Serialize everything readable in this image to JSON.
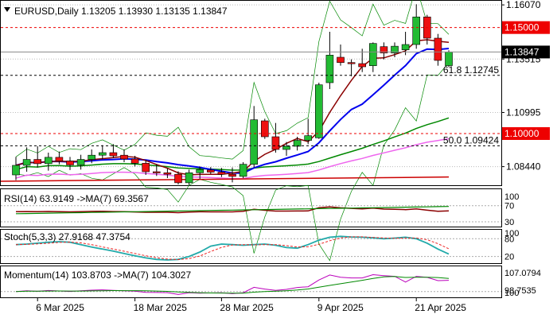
{
  "header": {
    "title": "EURUSD,Daily  1.13205 1.13930 1.13135 1.13847"
  },
  "colors": {
    "bull": "#22bb33",
    "bear": "#ee1111",
    "ma_fast": "#8b0000",
    "ma_mid": "#0000ee",
    "ma_slow": "#008800",
    "ma_pink": "#ee66ee",
    "ma_red": "#cc0000",
    "level_red": "#ee0000",
    "rsi": "#8b0000",
    "rsi_ma": "#008800",
    "stoch_main": "#22aaaa",
    "stoch_signal": "#ee2222",
    "mom": "#bb00bb",
    "mom_ma": "#008800"
  },
  "chart_data": {
    "type": "candlestick",
    "symbol": "EURUSD",
    "timeframe": "Daily",
    "ohlc_current": {
      "open": 1.13205,
      "high": 1.1393,
      "low": 1.13135,
      "close": 1.13847
    },
    "ylim": [
      1.076,
      1.1615
    ],
    "y_ticks": [
      "1.16070",
      "1.13515",
      "1.10995",
      "1.08440"
    ],
    "x_ticks": [
      "6 Mar 2025",
      "18 Mar 2025",
      "28 Mar 2025",
      "9 Apr 2025",
      "21 Apr 2025"
    ],
    "x_tick_bar_index": [
      2,
      11,
      19,
      28,
      37
    ],
    "candles": [
      {
        "o": 1.0805,
        "h": 1.089,
        "l": 1.078,
        "c": 1.085
      },
      {
        "o": 1.085,
        "h": 1.0935,
        "l": 1.082,
        "c": 1.0878
      },
      {
        "o": 1.0878,
        "h": 1.094,
        "l": 1.084,
        "c": 1.0858
      },
      {
        "o": 1.0858,
        "h": 1.091,
        "l": 1.0825,
        "c": 1.0888
      },
      {
        "o": 1.0888,
        "h": 1.0915,
        "l": 1.0855,
        "c": 1.087
      },
      {
        "o": 1.087,
        "h": 1.089,
        "l": 1.0828,
        "c": 1.0852
      },
      {
        "o": 1.0852,
        "h": 1.09,
        "l": 1.083,
        "c": 1.0878
      },
      {
        "o": 1.0878,
        "h": 1.0925,
        "l": 1.086,
        "c": 1.0898
      },
      {
        "o": 1.0898,
        "h": 1.0945,
        "l": 1.088,
        "c": 1.091
      },
      {
        "o": 1.091,
        "h": 1.095,
        "l": 1.0885,
        "c": 1.0895
      },
      {
        "o": 1.0898,
        "h": 1.0925,
        "l": 1.0865,
        "c": 1.088
      },
      {
        "o": 1.088,
        "h": 1.0895,
        "l": 1.0845,
        "c": 1.086
      },
      {
        "o": 1.086,
        "h": 1.0875,
        "l": 1.0805,
        "c": 1.082
      },
      {
        "o": 1.082,
        "h": 1.0855,
        "l": 1.08,
        "c": 1.0815
      },
      {
        "o": 1.0815,
        "h": 1.0835,
        "l": 1.079,
        "c": 1.0808
      },
      {
        "o": 1.0808,
        "h": 1.0822,
        "l": 1.076,
        "c": 1.0768
      },
      {
        "o": 1.0768,
        "h": 1.083,
        "l": 1.0758,
        "c": 1.0815
      },
      {
        "o": 1.0815,
        "h": 1.0845,
        "l": 1.0785,
        "c": 1.083
      },
      {
        "o": 1.0828,
        "h": 1.0842,
        "l": 1.081,
        "c": 1.0818
      },
      {
        "o": 1.0818,
        "h": 1.0838,
        "l": 1.0795,
        "c": 1.0808
      },
      {
        "o": 1.0808,
        "h": 1.084,
        "l": 1.077,
        "c": 1.0798
      },
      {
        "o": 1.0798,
        "h": 1.0865,
        "l": 1.079,
        "c": 1.0855
      },
      {
        "o": 1.0855,
        "h": 1.113,
        "l": 1.084,
        "c": 1.1065
      },
      {
        "o": 1.106,
        "h": 1.107,
        "l": 1.0975,
        "c": 1.0985
      },
      {
        "o": 1.0985,
        "h": 1.105,
        "l": 1.091,
        "c": 1.0925
      },
      {
        "o": 1.0925,
        "h": 1.096,
        "l": 1.0895,
        "c": 1.094
      },
      {
        "o": 1.094,
        "h": 1.0985,
        "l": 1.092,
        "c": 1.0968
      },
      {
        "o": 1.0968,
        "h": 1.107,
        "l": 1.095,
        "c": 1.099
      },
      {
        "o": 1.098,
        "h": 1.124,
        "l": 1.0975,
        "c": 1.123
      },
      {
        "o": 1.124,
        "h": 1.148,
        "l": 1.121,
        "c": 1.137
      },
      {
        "o": 1.136,
        "h": 1.142,
        "l": 1.132,
        "c": 1.1335
      },
      {
        "o": 1.1335,
        "h": 1.135,
        "l": 1.127,
        "c": 1.133
      },
      {
        "o": 1.133,
        "h": 1.14,
        "l": 1.129,
        "c": 1.1315
      },
      {
        "o": 1.132,
        "h": 1.143,
        "l": 1.129,
        "c": 1.1425
      },
      {
        "o": 1.141,
        "h": 1.143,
        "l": 1.135,
        "c": 1.138
      },
      {
        "o": 1.138,
        "h": 1.143,
        "l": 1.136,
        "c": 1.1412
      },
      {
        "o": 1.1395,
        "h": 1.148,
        "l": 1.137,
        "c": 1.142
      },
      {
        "o": 1.142,
        "h": 1.161,
        "l": 1.14,
        "c": 1.155
      },
      {
        "o": 1.155,
        "h": 1.156,
        "l": 1.142,
        "c": 1.145
      },
      {
        "o": 1.145,
        "h": 1.147,
        "l": 1.132,
        "c": 1.1345
      },
      {
        "o": 1.13205,
        "h": 1.1393,
        "l": 1.13135,
        "c": 1.13847
      }
    ],
    "horizontal_lines": [
      {
        "value": 1.15,
        "label": "1.15000",
        "style": "dashed-red",
        "tag": "red"
      },
      {
        "value": 1.13847,
        "label": "1.13847",
        "style": "current",
        "tag": "black"
      },
      {
        "value": 1.12745,
        "label": "61.8 1.12745",
        "style": "dashed-black",
        "tag": "none"
      },
      {
        "value": 1.1,
        "label": "1.10000",
        "style": "dashed-red",
        "tag": "red"
      },
      {
        "value": 1.09424,
        "label": "50.0 1.09424",
        "style": "dashed-black",
        "tag": "none"
      }
    ],
    "indicators": {
      "rsi": {
        "label": "RSI(14) 63.9149 ->MA(7) 69.3567",
        "value": 63.9149,
        "ma": 69.3567,
        "levels": [
          100,
          70,
          30
        ],
        "level_labels": [
          "100",
          "70",
          "30"
        ]
      },
      "stoch": {
        "label": "Stoch(5,3,3) 27.9168 47.3754",
        "main": 27.9168,
        "signal": 47.3754,
        "levels": [
          100,
          80,
          20
        ],
        "level_labels": [
          "100",
          "80",
          "20"
        ]
      },
      "momentum": {
        "label": "Momentum(14) 103.8703 ->MA(7) 104.3027",
        "value": 103.8703,
        "ma": 104.3027,
        "axis_labels": [
          "107.0794",
          "98.7535",
          "100"
        ]
      }
    }
  },
  "panels": {
    "rsi": {
      "title": "RSI(14) 63.9149 ->MA(7) 69.3567"
    },
    "stoch": {
      "title": "Stoch(5,3,3) 27.9168 47.3754"
    },
    "momentum": {
      "title": "Momentum(14) 103.8703 ->MA(7) 104.3027"
    }
  }
}
